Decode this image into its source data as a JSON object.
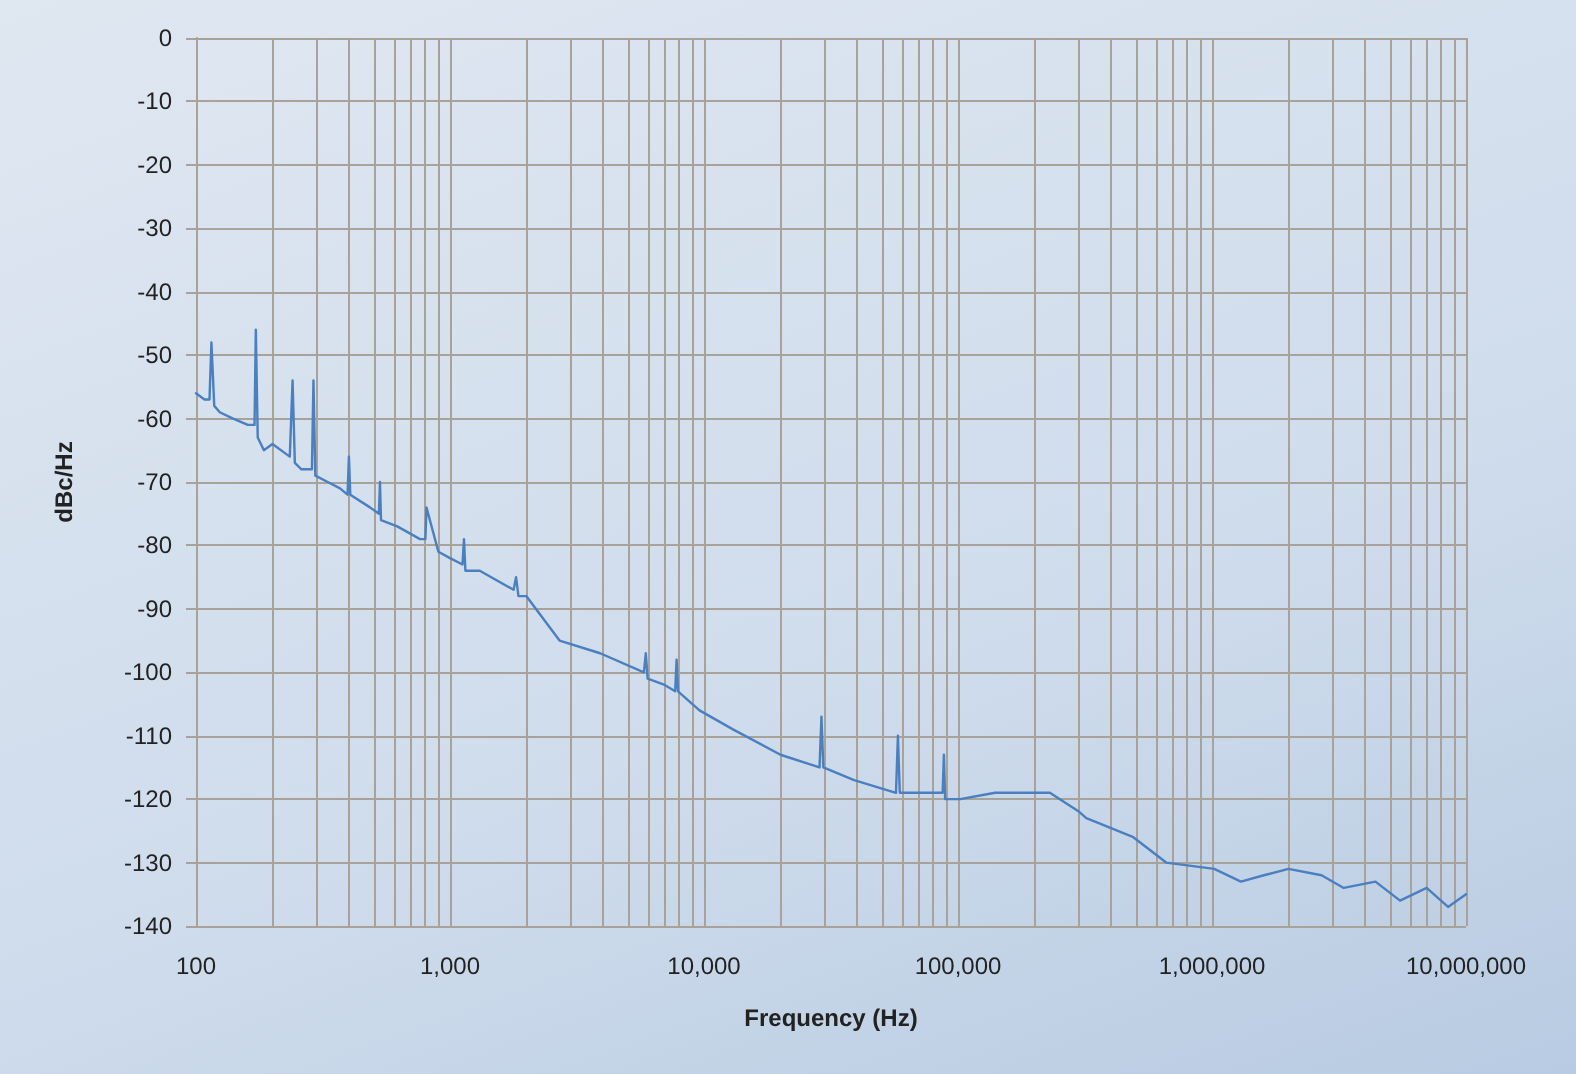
{
  "chart_data": {
    "type": "line",
    "xlabel": "Frequency (Hz)",
    "ylabel": "dBc/Hz",
    "log": "x",
    "grid": true,
    "marker": "none",
    "line_style": "solid",
    "xlim": [
      100,
      10000000
    ],
    "ylim": [
      -140,
      0
    ],
    "xticks": [
      {
        "value": 100,
        "label": "100"
      },
      {
        "value": 1000,
        "label": "1,000"
      },
      {
        "value": 10000,
        "label": "10,000"
      },
      {
        "value": 100000,
        "label": "100,000"
      },
      {
        "value": 1000000,
        "label": "1,000,000"
      },
      {
        "value": 10000000,
        "label": "10,000,000"
      }
    ],
    "yticks": [
      -140,
      -130,
      -120,
      -110,
      -100,
      -90,
      -80,
      -70,
      -60,
      -50,
      -40,
      -30,
      -20,
      -10,
      0
    ],
    "series": [
      {
        "color": "#4a7fc0",
        "x": [
          100,
          108,
          113,
          115,
          118,
          124,
          140,
          160,
          170,
          172,
          175,
          185,
          200,
          234,
          240,
          245,
          260,
          286,
          290,
          295,
          330,
          369,
          395,
          400,
          405,
          484,
          525,
          530,
          535,
          620,
          762,
          800,
          808,
          900,
          1000,
          1120,
          1135,
          1150,
          1310,
          1780,
          1820,
          1860,
          2000,
          2700,
          3900,
          5800,
          5900,
          6000,
          7000,
          7700,
          7800,
          7900,
          9600,
          13000,
          20000,
          28500,
          29000,
          29500,
          39000,
          57000,
          58000,
          59000,
          87000,
          88000,
          89000,
          102000,
          140000,
          185000,
          230000,
          300000,
          320000,
          490000,
          660000,
          1020000,
          1300000,
          1600000,
          2000000,
          2700000,
          3300000,
          4400000,
          5500000,
          7000000,
          8500000,
          10000000
        ],
        "values": [
          -56,
          -57,
          -57,
          -48,
          -58,
          -59,
          -60,
          -61,
          -61,
          -46,
          -63,
          -65,
          -64,
          -66,
          -54,
          -67,
          -68,
          -68,
          -54,
          -69,
          -70,
          -71,
          -72,
          -66,
          -72,
          -74,
          -75,
          -70,
          -76,
          -77,
          -79,
          -79,
          -74,
          -81,
          -82,
          -83,
          -79,
          -84,
          -84,
          -87,
          -85,
          -88,
          -88,
          -95,
          -97,
          -100,
          -97,
          -101,
          -102,
          -103,
          -98,
          -103,
          -106,
          -109,
          -113,
          -115,
          -107,
          -115,
          -117,
          -119,
          -110,
          -119,
          -119,
          -113,
          -120,
          -120,
          -119,
          -119,
          -119,
          -122,
          -123,
          -126,
          -130,
          -131,
          -133,
          -132,
          -131,
          -132,
          -134,
          -133,
          -136,
          -134,
          -137,
          -135
        ]
      }
    ]
  }
}
